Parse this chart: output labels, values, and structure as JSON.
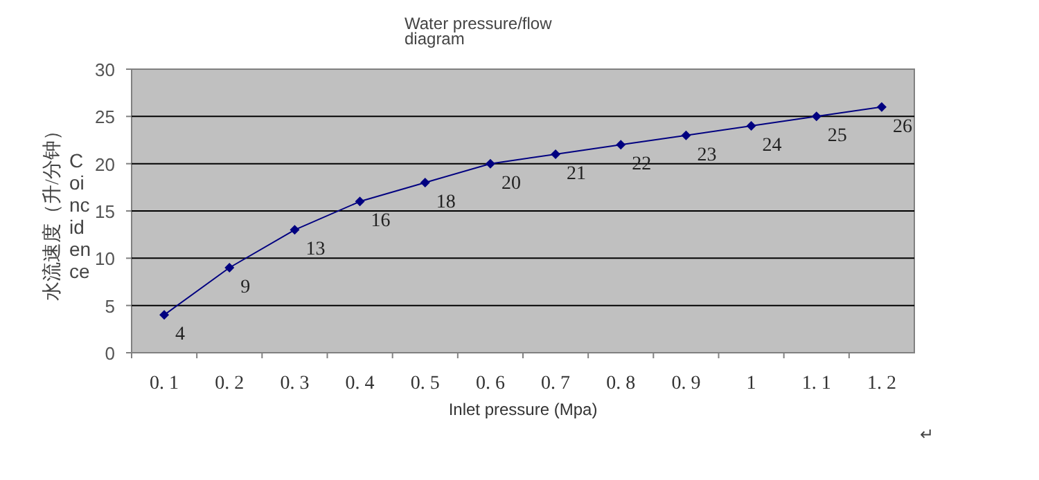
{
  "chart_data": {
    "type": "line",
    "title": "Water pressure/flow diagram",
    "xlabel": "Inlet pressure (Mpa)",
    "ylabel": "水流速度（升/分钟）",
    "annotations": [
      "Coincidence",
      "↵"
    ],
    "categories": [
      "0. 1",
      "0. 2",
      "0. 3",
      "0. 4",
      "0. 5",
      "0. 6",
      "0. 7",
      "0. 8",
      "0. 9",
      "1",
      "1. 1",
      "1. 2"
    ],
    "series": [
      {
        "color": "#000080",
        "values": [
          4,
          9,
          13,
          16,
          18,
          20,
          21,
          22,
          23,
          24,
          25,
          26
        ]
      }
    ],
    "ylim": [
      0,
      30
    ],
    "yticks": [
      0,
      5,
      10,
      15,
      20,
      25,
      30
    ],
    "grid": "y",
    "marker": "diamond",
    "line_style": "solid",
    "data_labels": true
  }
}
